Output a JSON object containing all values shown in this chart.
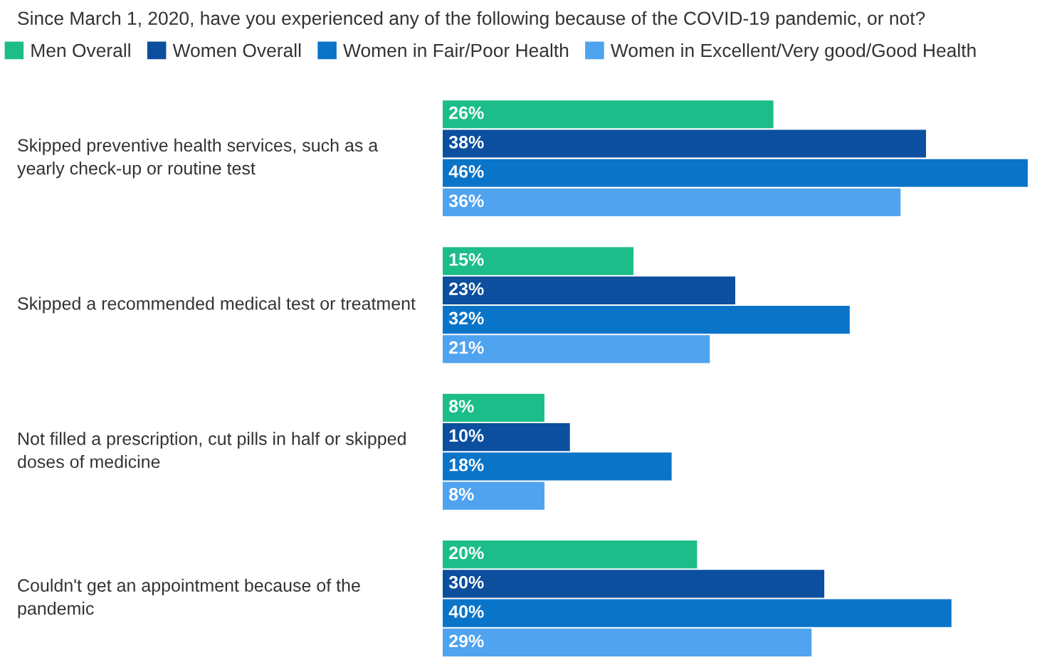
{
  "chart_data": {
    "type": "bar",
    "orientation": "horizontal",
    "title": "Since March 1, 2020, have you experienced any of the following because of the COVID-19 pandemic, or not?",
    "categories": [
      "Skipped preventive health services, such as a\nyearly check-up or routine test",
      "Skipped a recommended medical test or treatment",
      "Not filled a prescription, cut pills in half or skipped\ndoses of medicine",
      "Couldn't get an appointment because of the\npandemic"
    ],
    "series": [
      {
        "name": "Men Overall",
        "color": "#1dbd8a",
        "values": [
          26,
          15,
          8,
          20
        ],
        "value_labels": [
          "26%",
          "15%",
          "8%",
          "20%"
        ]
      },
      {
        "name": "Women Overall",
        "color": "#0b4f9e",
        "values": [
          38,
          23,
          10,
          30
        ],
        "value_labels": [
          "38%",
          "23%",
          "10%",
          "30%"
        ]
      },
      {
        "name": "Women in Fair/Poor Health",
        "color": "#0a74c9",
        "values": [
          46,
          32,
          18,
          40
        ],
        "value_labels": [
          "46%",
          "32%",
          "18%",
          "40%"
        ]
      },
      {
        "name": "Women in Excellent/Very good/Good Health",
        "color": "#4fa3ef",
        "values": [
          36,
          21,
          8,
          29
        ],
        "value_labels": [
          "36%",
          "21%",
          "8%",
          "29%"
        ]
      }
    ],
    "legend": "top left"
  }
}
